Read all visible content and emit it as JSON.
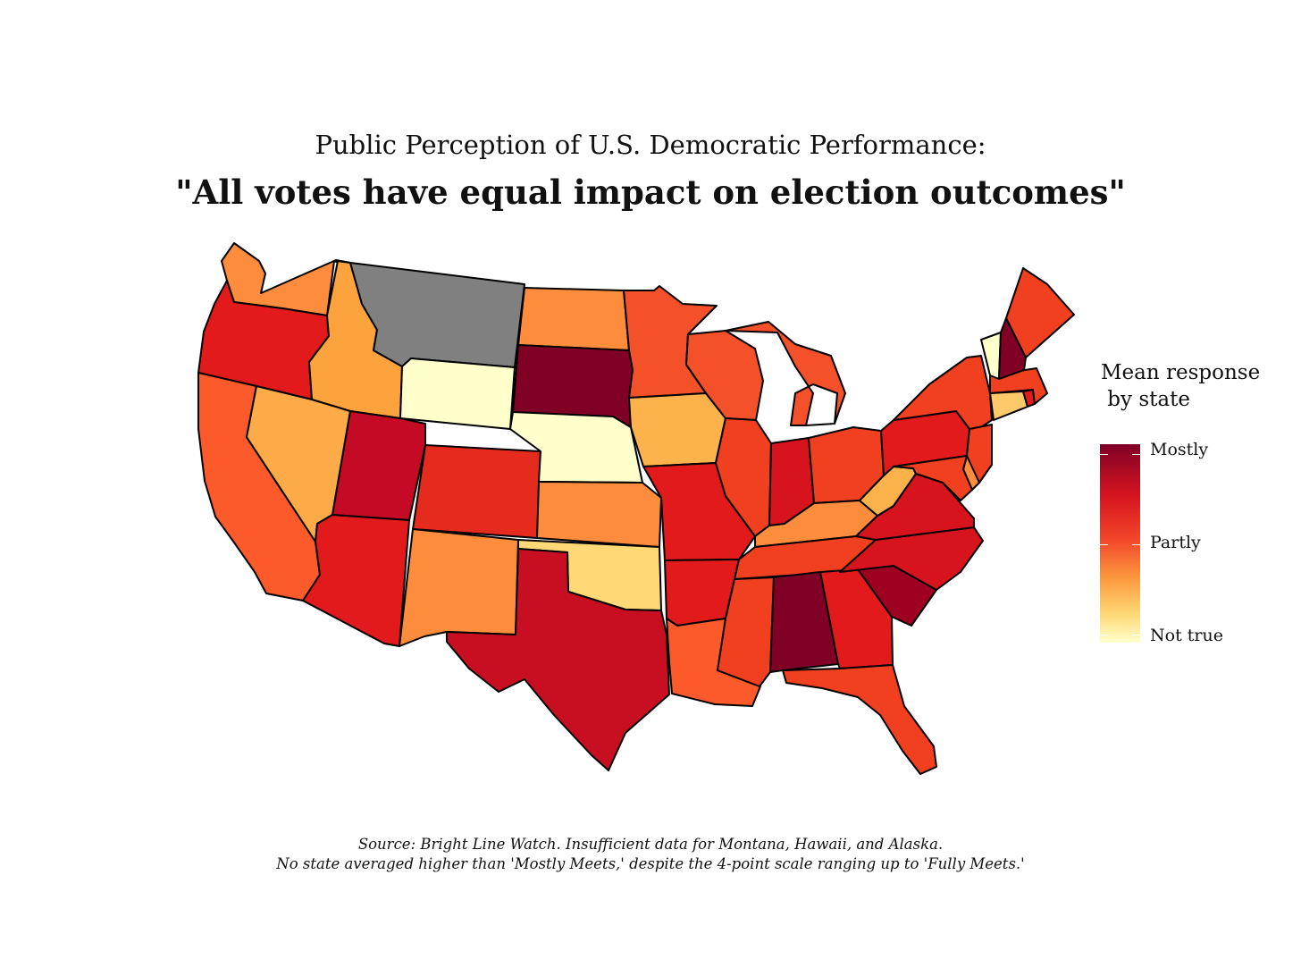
{
  "header": {
    "subtitle": "Public Perception of U.S. Democratic Performance:",
    "title": "\"All votes have equal impact on election outcomes\""
  },
  "legend": {
    "title": "Mean response\n by state",
    "labels": {
      "top": "Mostly",
      "mid": "Partly",
      "bottom": "Not true"
    }
  },
  "caption": {
    "line1": "Source: Bright Line Watch. Insufficient data for Montana, Hawaii, and Alaska.",
    "line2": "No state averaged higher than 'Mostly Meets,' despite the 4-point scale ranging up to 'Fully Meets.'"
  },
  "colors": {
    "no_data": "#808080",
    "scale": [
      "#ffffcc",
      "#fed976",
      "#feb24c",
      "#fd8d3c",
      "#fc4e2a",
      "#e31a1c",
      "#bd0026",
      "#800026"
    ]
  },
  "chart_data": {
    "type": "choropleth",
    "scale_labels": [
      "Not true",
      "Partly",
      "Mostly"
    ],
    "states": {
      "WA": "#fd8d3c",
      "OR": "#e31a1c",
      "CA": "#fc5a2a",
      "ID": "#fda33d",
      "NV": "#fdaa48",
      "MT": "#808080",
      "WY": "#ffffcc",
      "UT": "#c40a24",
      "AZ": "#e31a1c",
      "CO": "#e52a1e",
      "NM": "#fd8d3c",
      "ND": "#fd8d3c",
      "SD": "#800026",
      "NE": "#ffffcc",
      "KS": "#fd8d3c",
      "OK": "#fed976",
      "TX": "#c80f21",
      "MN": "#f4502a",
      "IA": "#feb24c",
      "MO": "#e31a1c",
      "AR": "#e31a1c",
      "LA": "#fc5a2a",
      "WI": "#f4502a",
      "IL": "#f0401f",
      "MI": "#f4502a",
      "IN": "#d7141e",
      "OH": "#f0401f",
      "KY": "#fd8d3c",
      "TN": "#f0401f",
      "MS": "#f0401f",
      "AL": "#800026",
      "GA": "#e31a1c",
      "FL": "#f0401f",
      "SC": "#9e0022",
      "NC": "#d7141e",
      "VA": "#d7141e",
      "WV": "#feb24c",
      "PA": "#e31a1c",
      "NY": "#f0401f",
      "VT": "#ffffcc",
      "NH": "#800026",
      "ME": "#f0401f",
      "MA": "#f0401f",
      "CT": "#fec96a",
      "RI": "#e31a1c",
      "NJ": "#f0401f",
      "DE": "#fd8d3c",
      "MD": "#f0401f"
    }
  }
}
